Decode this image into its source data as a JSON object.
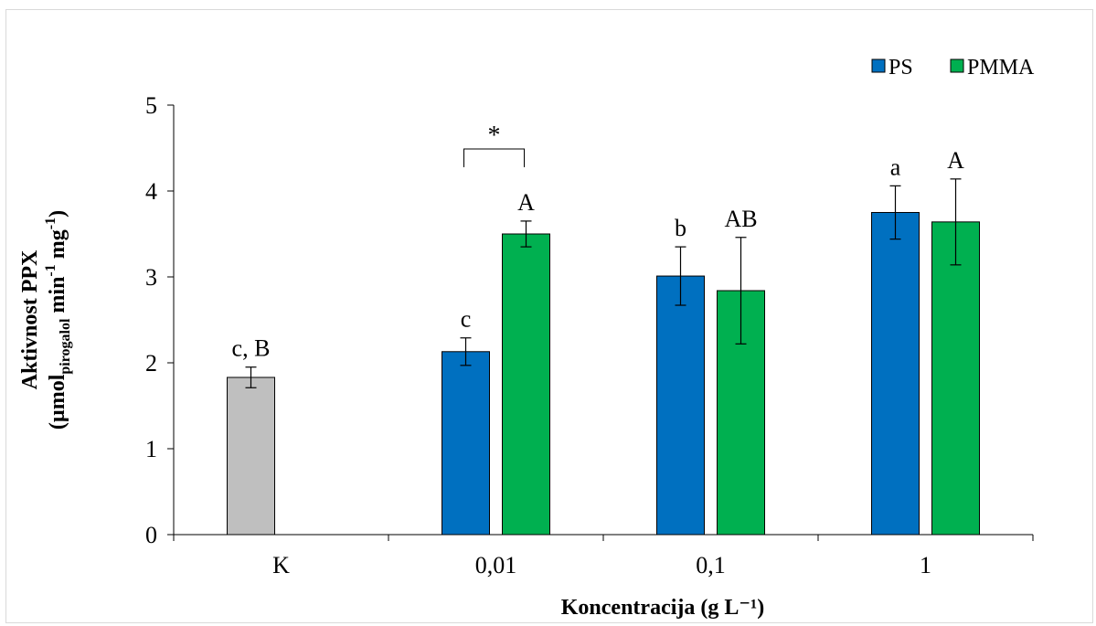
{
  "chart_data": {
    "type": "bar",
    "categories": [
      "K",
      "0,01",
      "0,1",
      "1"
    ],
    "series": [
      {
        "name": "PS",
        "color": "#0070c0",
        "values": [
          1.83,
          2.13,
          3.01,
          3.75
        ],
        "errors": [
          0.12,
          0.16,
          0.34,
          0.31
        ],
        "letters": [
          "c, B",
          "c",
          "b",
          "a"
        ],
        "colors": [
          "#bfbfbf",
          "#0070c0",
          "#0070c0",
          "#0070c0"
        ]
      },
      {
        "name": "PMMA",
        "color": "#00b050",
        "values": [
          null,
          3.5,
          2.84,
          3.64
        ],
        "errors": [
          null,
          0.15,
          0.62,
          0.5
        ],
        "letters": [
          "",
          "A",
          "AB",
          "A"
        ],
        "colors": [
          "#00b050",
          "#00b050",
          "#00b050",
          "#00b050"
        ]
      }
    ],
    "ylabel_line1": "Aktivnost PPX",
    "ylabel_line2": {
      "open": "(µmol",
      "sub": "pirogalol",
      "mid": " min",
      "sup1": "-1",
      "mid2": " mg",
      "sup2": "-1",
      "close": ")"
    },
    "xlabel": "Koncentracija (g L⁻¹)",
    "ylim": [
      0,
      5
    ],
    "yticks": [
      0,
      1,
      2,
      3,
      4,
      5
    ],
    "legend_position": "top-right",
    "significance": {
      "category": "0,01",
      "mark": "*"
    }
  }
}
